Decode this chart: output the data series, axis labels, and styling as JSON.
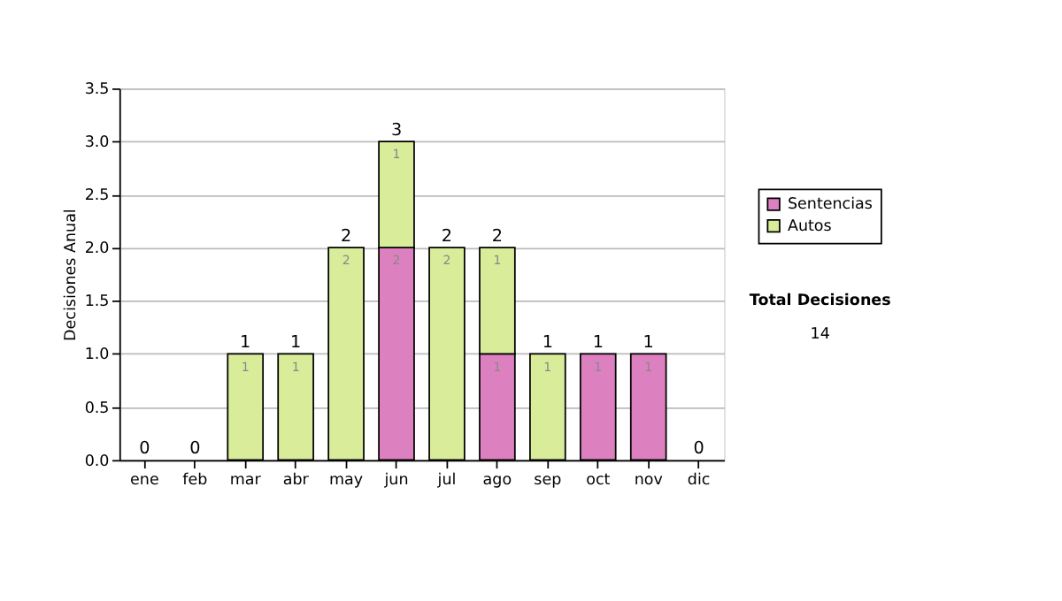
{
  "chart_data": {
    "type": "bar",
    "stacked": true,
    "ylabel": "Decisiones Anual",
    "categories": [
      "ene",
      "feb",
      "mar",
      "abr",
      "may",
      "jun",
      "jul",
      "ago",
      "sep",
      "oct",
      "nov",
      "dic"
    ],
    "series": [
      {
        "name": "Sentencias",
        "color": "#dd80c0",
        "values": [
          null,
          null,
          null,
          null,
          null,
          2,
          null,
          1,
          null,
          1,
          1,
          null
        ]
      },
      {
        "name": "Autos",
        "color": "#d8ec9a",
        "values": [
          null,
          null,
          1,
          1,
          2,
          1,
          2,
          1,
          1,
          null,
          null,
          null
        ]
      }
    ],
    "data_labels": true,
    "totals": [
      "0",
      "0",
      "1",
      "1",
      "2",
      "3",
      "2",
      "2",
      "1",
      "1",
      "1",
      "0"
    ],
    "ylim": [
      0,
      3.5
    ],
    "yticks": [
      {
        "value": 0,
        "label": "0.0"
      },
      {
        "value": 0.5,
        "label": "0.5"
      },
      {
        "value": 1,
        "label": "1.0"
      },
      {
        "value": 1.5,
        "label": "1.5"
      },
      {
        "value": 2,
        "label": "2.0"
      },
      {
        "value": 2.5,
        "label": "2.5"
      },
      {
        "value": 3,
        "label": "3.0"
      },
      {
        "value": 3.5,
        "label": "3.5"
      }
    ],
    "grid": "y",
    "legend": "right",
    "annotations": [
      "Total Decisiones",
      "14"
    ]
  }
}
